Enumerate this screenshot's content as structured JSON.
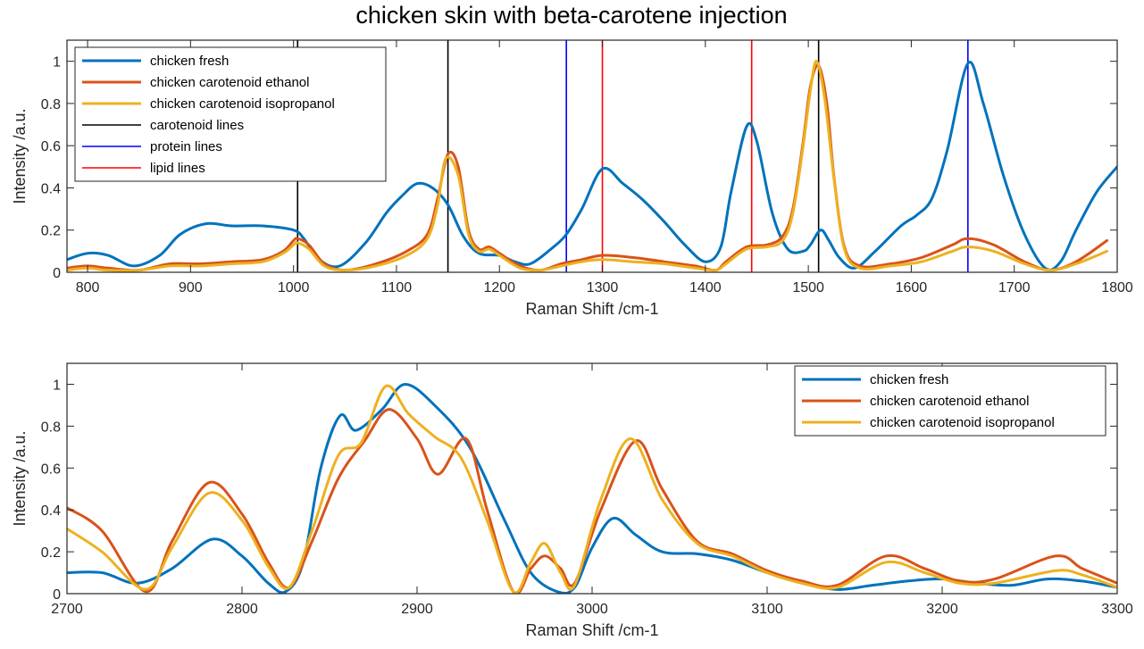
{
  "figure_title": "chicken skin with beta-carotene injection",
  "colors": {
    "chicken_fresh": "#0072BD",
    "chicken_carotenoid_ethanol": "#D95319",
    "chicken_carotenoid_isopropanol": "#EDB120",
    "carotenoid_lines": "#000000",
    "protein_lines": "#0000FF",
    "lipid_lines": "#FF0000"
  },
  "chart_data": [
    {
      "type": "line",
      "xlabel": "Raman Shift /cm-1",
      "ylabel": "Intensity /a.u.",
      "xlim": [
        780,
        1800
      ],
      "ylim": [
        0,
        1.1
      ],
      "xticks": [
        800,
        900,
        1000,
        1100,
        1200,
        1300,
        1400,
        1500,
        1600,
        1700,
        1800
      ],
      "yticks": [
        0,
        0.2,
        0.4,
        0.6,
        0.8,
        1
      ],
      "ytick_labels": [
        "0",
        "0.2",
        "0.4",
        "0.6",
        "0.8",
        "1"
      ],
      "grid": false,
      "legend_position": "top-left",
      "legend": [
        "chicken fresh",
        "chicken carotenoid ethanol",
        "chicken carotenoid isopropanol",
        "carotenoid lines",
        "protein lines",
        "lipid lines"
      ],
      "vlines": [
        {
          "group": "carotenoid lines",
          "x": [
            1004,
            1150,
            1510
          ]
        },
        {
          "group": "protein lines",
          "x": [
            1265,
            1655
          ]
        },
        {
          "group": "lipid lines",
          "x": [
            1300,
            1445
          ]
        }
      ],
      "series": [
        {
          "name": "chicken fresh",
          "x": [
            780,
            800,
            820,
            845,
            870,
            890,
            915,
            940,
            970,
            1000,
            1010,
            1025,
            1045,
            1070,
            1090,
            1105,
            1120,
            1135,
            1150,
            1165,
            1180,
            1200,
            1215,
            1230,
            1250,
            1265,
            1280,
            1300,
            1320,
            1340,
            1360,
            1380,
            1400,
            1415,
            1425,
            1440,
            1450,
            1465,
            1480,
            1495,
            1502,
            1512,
            1520,
            1530,
            1545,
            1565,
            1590,
            1605,
            1620,
            1635,
            1655,
            1670,
            1690,
            1710,
            1730,
            1745,
            1760,
            1780,
            1800
          ],
          "y": [
            0.06,
            0.09,
            0.08,
            0.03,
            0.08,
            0.18,
            0.23,
            0.22,
            0.22,
            0.2,
            0.16,
            0.06,
            0.03,
            0.14,
            0.28,
            0.36,
            0.42,
            0.4,
            0.32,
            0.17,
            0.09,
            0.08,
            0.05,
            0.04,
            0.11,
            0.18,
            0.3,
            0.49,
            0.42,
            0.34,
            0.24,
            0.13,
            0.05,
            0.12,
            0.38,
            0.69,
            0.62,
            0.28,
            0.11,
            0.1,
            0.13,
            0.2,
            0.15,
            0.07,
            0.02,
            0.1,
            0.22,
            0.27,
            0.35,
            0.58,
            0.99,
            0.8,
            0.45,
            0.18,
            0.02,
            0.05,
            0.2,
            0.38,
            0.5
          ]
        },
        {
          "name": "chicken carotenoid ethanol",
          "x": [
            780,
            800,
            820,
            850,
            880,
            910,
            940,
            970,
            990,
            1000,
            1004,
            1015,
            1030,
            1050,
            1080,
            1110,
            1130,
            1140,
            1150,
            1160,
            1170,
            1180,
            1190,
            1200,
            1220,
            1240,
            1260,
            1280,
            1300,
            1330,
            1360,
            1390,
            1410,
            1420,
            1440,
            1460,
            1475,
            1485,
            1495,
            1502,
            1510,
            1518,
            1525,
            1535,
            1550,
            1580,
            1610,
            1640,
            1655,
            1680,
            1710,
            1735,
            1760,
            1790
          ],
          "y": [
            0.02,
            0.03,
            0.02,
            0.01,
            0.04,
            0.04,
            0.05,
            0.06,
            0.1,
            0.15,
            0.16,
            0.13,
            0.04,
            0.01,
            0.04,
            0.1,
            0.18,
            0.35,
            0.56,
            0.5,
            0.2,
            0.11,
            0.12,
            0.09,
            0.03,
            0.01,
            0.04,
            0.06,
            0.08,
            0.07,
            0.05,
            0.03,
            0.01,
            0.05,
            0.12,
            0.13,
            0.17,
            0.3,
            0.62,
            0.88,
            0.98,
            0.8,
            0.45,
            0.12,
            0.03,
            0.04,
            0.07,
            0.13,
            0.16,
            0.13,
            0.05,
            0.01,
            0.05,
            0.15
          ]
        },
        {
          "name": "chicken carotenoid isopropanol",
          "x": [
            780,
            800,
            820,
            850,
            880,
            910,
            940,
            970,
            990,
            1000,
            1004,
            1015,
            1030,
            1050,
            1080,
            1110,
            1130,
            1140,
            1148,
            1160,
            1170,
            1180,
            1190,
            1200,
            1220,
            1240,
            1260,
            1280,
            1300,
            1330,
            1360,
            1390,
            1410,
            1420,
            1440,
            1460,
            1475,
            1485,
            1495,
            1502,
            1508,
            1516,
            1525,
            1535,
            1550,
            1580,
            1610,
            1640,
            1655,
            1680,
            1710,
            1735,
            1760,
            1790
          ],
          "y": [
            0.01,
            0.02,
            0.01,
            0.01,
            0.03,
            0.03,
            0.04,
            0.05,
            0.09,
            0.13,
            0.14,
            0.11,
            0.03,
            0.01,
            0.03,
            0.08,
            0.16,
            0.32,
            0.54,
            0.46,
            0.18,
            0.1,
            0.11,
            0.08,
            0.02,
            0.01,
            0.03,
            0.05,
            0.06,
            0.05,
            0.04,
            0.02,
            0.01,
            0.04,
            0.11,
            0.12,
            0.15,
            0.28,
            0.6,
            0.86,
            1.0,
            0.82,
            0.44,
            0.11,
            0.02,
            0.03,
            0.05,
            0.1,
            0.12,
            0.1,
            0.04,
            0.01,
            0.04,
            0.1
          ]
        }
      ]
    },
    {
      "type": "line",
      "xlabel": "Raman Shift /cm-1",
      "ylabel": "Intensity /a.u.",
      "xlim": [
        2700,
        3300
      ],
      "ylim": [
        0,
        1.1
      ],
      "xticks": [
        2700,
        2800,
        2900,
        3000,
        3100,
        3200,
        3300
      ],
      "yticks": [
        0,
        0.2,
        0.4,
        0.6,
        0.8,
        1
      ],
      "ytick_labels": [
        "0",
        "0.2",
        "0.4",
        "0.6",
        "0.8",
        "1"
      ],
      "grid": false,
      "legend_position": "top-right",
      "legend": [
        "chicken fresh",
        "chicken carotenoid ethanol",
        "chicken carotenoid isopropanol"
      ],
      "series": [
        {
          "name": "chicken fresh",
          "x": [
            2700,
            2720,
            2740,
            2760,
            2783,
            2800,
            2815,
            2825,
            2835,
            2845,
            2856,
            2865,
            2880,
            2893,
            2910,
            2930,
            2950,
            2965,
            2980,
            2990,
            3000,
            3012,
            3025,
            3040,
            3060,
            3080,
            3100,
            3120,
            3140,
            3160,
            3180,
            3200,
            3220,
            3240,
            3260,
            3280,
            3300
          ],
          "y": [
            0.1,
            0.1,
            0.05,
            0.12,
            0.26,
            0.18,
            0.05,
            0.01,
            0.15,
            0.6,
            0.85,
            0.78,
            0.88,
            1.0,
            0.9,
            0.7,
            0.35,
            0.1,
            0.01,
            0.03,
            0.22,
            0.36,
            0.28,
            0.2,
            0.19,
            0.16,
            0.1,
            0.05,
            0.02,
            0.04,
            0.06,
            0.07,
            0.05,
            0.04,
            0.07,
            0.06,
            0.03
          ]
        },
        {
          "name": "chicken carotenoid ethanol",
          "x": [
            2700,
            2720,
            2745,
            2760,
            2781,
            2800,
            2815,
            2827,
            2840,
            2855,
            2870,
            2884,
            2900,
            2912,
            2928,
            2940,
            2955,
            2965,
            2973,
            2982,
            2990,
            3005,
            3025,
            3040,
            3060,
            3080,
            3100,
            3120,
            3140,
            3168,
            3190,
            3210,
            3230,
            3265,
            3280,
            3300
          ],
          "y": [
            0.41,
            0.3,
            0.01,
            0.25,
            0.53,
            0.38,
            0.15,
            0.03,
            0.25,
            0.55,
            0.73,
            0.88,
            0.74,
            0.57,
            0.74,
            0.4,
            0.01,
            0.12,
            0.18,
            0.12,
            0.05,
            0.4,
            0.73,
            0.5,
            0.25,
            0.19,
            0.11,
            0.06,
            0.04,
            0.18,
            0.12,
            0.06,
            0.07,
            0.18,
            0.12,
            0.05
          ]
        },
        {
          "name": "chicken carotenoid isopropanol",
          "x": [
            2700,
            2720,
            2745,
            2760,
            2781,
            2800,
            2815,
            2827,
            2840,
            2855,
            2868,
            2882,
            2895,
            2910,
            2925,
            2940,
            2955,
            2965,
            2973,
            2982,
            2990,
            3005,
            3022,
            3040,
            3060,
            3080,
            3100,
            3120,
            3140,
            3168,
            3190,
            3210,
            3230,
            3265,
            3280,
            3300
          ],
          "y": [
            0.31,
            0.2,
            0.02,
            0.22,
            0.48,
            0.35,
            0.13,
            0.03,
            0.3,
            0.66,
            0.72,
            0.99,
            0.86,
            0.75,
            0.65,
            0.35,
            0.01,
            0.15,
            0.24,
            0.1,
            0.04,
            0.45,
            0.74,
            0.45,
            0.24,
            0.18,
            0.1,
            0.05,
            0.03,
            0.15,
            0.1,
            0.05,
            0.05,
            0.11,
            0.09,
            0.03
          ]
        }
      ]
    }
  ]
}
